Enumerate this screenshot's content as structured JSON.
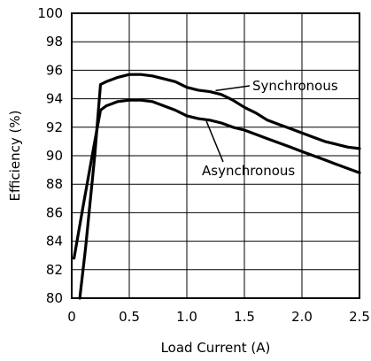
{
  "chart_data": {
    "type": "line",
    "title": "",
    "xlabel": "Load Current (A)",
    "ylabel": "Efficiency (%)",
    "xlim": [
      0,
      2.5
    ],
    "ylim": [
      80,
      100
    ],
    "x_ticks": [
      0,
      0.5,
      1.0,
      1.5,
      2.0,
      2.5
    ],
    "x_tick_labels": [
      "0",
      "0.5",
      "1.0",
      "1.5",
      "2.0",
      "2.5"
    ],
    "y_ticks": [
      80,
      82,
      84,
      86,
      88,
      90,
      92,
      94,
      96,
      98,
      100
    ],
    "y_tick_labels": [
      "80",
      "82",
      "84",
      "86",
      "88",
      "90",
      "92",
      "94",
      "96",
      "98",
      "100"
    ],
    "grid": true,
    "legend": "none",
    "series": [
      {
        "name": "Synchronous",
        "x": [
          0.07,
          0.12,
          0.2,
          0.25,
          0.3,
          0.4,
          0.5,
          0.6,
          0.7,
          0.8,
          0.9,
          1.0,
          1.1,
          1.2,
          1.3,
          1.4,
          1.5,
          1.6,
          1.7,
          1.8,
          1.9,
          2.0,
          2.1,
          2.2,
          2.3,
          2.4,
          2.5
        ],
        "y": [
          80.0,
          83.5,
          90.0,
          95.0,
          95.2,
          95.5,
          95.7,
          95.7,
          95.6,
          95.4,
          95.2,
          94.8,
          94.6,
          94.5,
          94.3,
          93.9,
          93.4,
          93.0,
          92.5,
          92.2,
          91.9,
          91.6,
          91.3,
          91.0,
          90.8,
          90.6,
          90.5
        ]
      },
      {
        "name": "Asynchronous",
        "x": [
          0.02,
          0.1,
          0.2,
          0.25,
          0.3,
          0.4,
          0.5,
          0.6,
          0.7,
          0.8,
          0.9,
          1.0,
          1.1,
          1.2,
          1.3,
          1.4,
          1.5,
          1.6,
          1.7,
          1.8,
          1.9,
          2.0,
          2.1,
          2.2,
          2.3,
          2.4,
          2.5
        ],
        "y": [
          82.8,
          86.5,
          91.0,
          93.2,
          93.5,
          93.8,
          93.9,
          93.9,
          93.8,
          93.5,
          93.2,
          92.8,
          92.6,
          92.5,
          92.3,
          92.0,
          91.8,
          91.5,
          91.2,
          90.9,
          90.6,
          90.3,
          90.0,
          89.7,
          89.4,
          89.1,
          88.8
        ]
      }
    ],
    "annotations": [
      {
        "text": "Synchronous",
        "series": "Synchronous"
      },
      {
        "text": "Asynchronous",
        "series": "Asynchronous"
      }
    ]
  }
}
